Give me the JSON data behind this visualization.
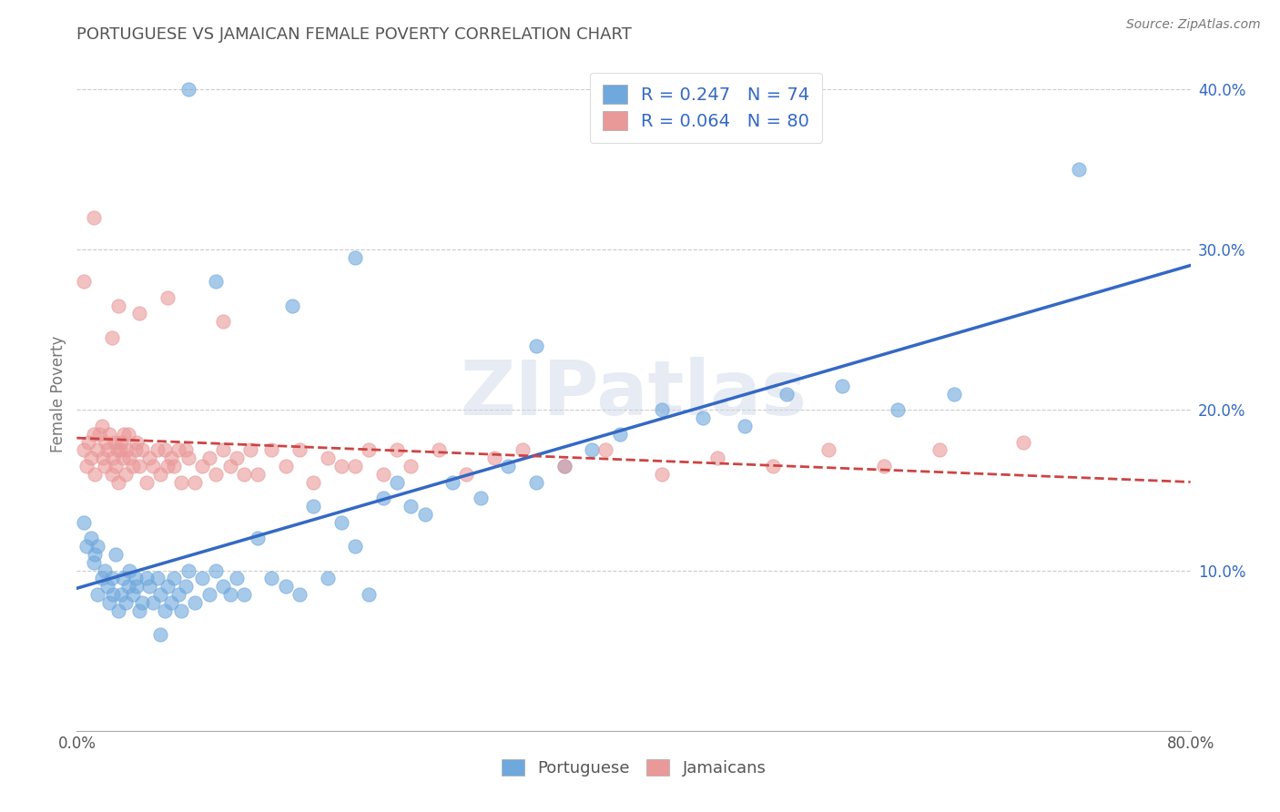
{
  "title": "PORTUGUESE VS JAMAICAN FEMALE POVERTY CORRELATION CHART",
  "source": "Source: ZipAtlas.com",
  "ylabel": "Female Poverty",
  "xlim": [
    0.0,
    0.8
  ],
  "ylim": [
    0.0,
    0.42
  ],
  "xticks": [
    0.0,
    0.1,
    0.2,
    0.3,
    0.4,
    0.5,
    0.6,
    0.7,
    0.8
  ],
  "xticklabels": [
    "0.0%",
    "",
    "",
    "",
    "",
    "",
    "",
    "",
    "80.0%"
  ],
  "yticks_right": [
    0.1,
    0.2,
    0.3,
    0.4
  ],
  "ytick_labels_right": [
    "10.0%",
    "20.0%",
    "30.0%",
    "40.0%"
  ],
  "portuguese_R": 0.247,
  "portuguese_N": 74,
  "jamaican_R": 0.064,
  "jamaican_N": 80,
  "blue_color": "#6fa8dc",
  "pink_color": "#ea9999",
  "blue_line_color": "#3469c4",
  "pink_line_color": "#cc4444",
  "legend_text_color": "#3469c4",
  "title_color": "#555555",
  "watermark": "ZIPatlas",
  "portuguese_x": [
    0.005,
    0.007,
    0.01,
    0.012,
    0.013,
    0.015,
    0.015,
    0.018,
    0.02,
    0.022,
    0.023,
    0.025,
    0.026,
    0.028,
    0.03,
    0.032,
    0.033,
    0.035,
    0.037,
    0.038,
    0.04,
    0.042,
    0.043,
    0.045,
    0.047,
    0.05,
    0.052,
    0.055,
    0.058,
    0.06,
    0.063,
    0.065,
    0.068,
    0.07,
    0.073,
    0.075,
    0.078,
    0.08,
    0.085,
    0.09,
    0.095,
    0.1,
    0.105,
    0.11,
    0.115,
    0.12,
    0.13,
    0.14,
    0.15,
    0.16,
    0.17,
    0.18,
    0.19,
    0.2,
    0.21,
    0.22,
    0.23,
    0.24,
    0.25,
    0.27,
    0.29,
    0.31,
    0.33,
    0.35,
    0.37,
    0.39,
    0.42,
    0.45,
    0.48,
    0.51,
    0.55,
    0.59,
    0.63,
    0.72
  ],
  "portuguese_y": [
    0.13,
    0.115,
    0.12,
    0.105,
    0.11,
    0.085,
    0.115,
    0.095,
    0.1,
    0.09,
    0.08,
    0.095,
    0.085,
    0.11,
    0.075,
    0.085,
    0.095,
    0.08,
    0.09,
    0.1,
    0.085,
    0.095,
    0.09,
    0.075,
    0.08,
    0.095,
    0.09,
    0.08,
    0.095,
    0.085,
    0.075,
    0.09,
    0.08,
    0.095,
    0.085,
    0.075,
    0.09,
    0.1,
    0.08,
    0.095,
    0.085,
    0.1,
    0.09,
    0.085,
    0.095,
    0.085,
    0.12,
    0.095,
    0.09,
    0.085,
    0.14,
    0.095,
    0.13,
    0.115,
    0.085,
    0.145,
    0.155,
    0.14,
    0.135,
    0.155,
    0.145,
    0.165,
    0.155,
    0.165,
    0.175,
    0.185,
    0.2,
    0.195,
    0.19,
    0.21,
    0.215,
    0.2,
    0.21,
    0.35
  ],
  "portuguese_y_outliers": [
    0.4,
    0.28,
    0.265,
    0.295,
    0.24,
    0.06
  ],
  "portuguese_x_outliers": [
    0.08,
    0.1,
    0.155,
    0.2,
    0.33,
    0.06
  ],
  "jamaican_x": [
    0.005,
    0.007,
    0.008,
    0.01,
    0.012,
    0.013,
    0.015,
    0.016,
    0.018,
    0.019,
    0.02,
    0.021,
    0.022,
    0.023,
    0.025,
    0.026,
    0.027,
    0.028,
    0.029,
    0.03,
    0.031,
    0.032,
    0.033,
    0.034,
    0.035,
    0.036,
    0.037,
    0.038,
    0.04,
    0.042,
    0.043,
    0.045,
    0.047,
    0.05,
    0.052,
    0.055,
    0.058,
    0.06,
    0.063,
    0.065,
    0.068,
    0.07,
    0.073,
    0.075,
    0.078,
    0.08,
    0.085,
    0.09,
    0.095,
    0.1,
    0.105,
    0.11,
    0.115,
    0.12,
    0.125,
    0.13,
    0.14,
    0.15,
    0.16,
    0.17,
    0.18,
    0.19,
    0.2,
    0.21,
    0.22,
    0.23,
    0.24,
    0.26,
    0.28,
    0.3,
    0.32,
    0.35,
    0.38,
    0.42,
    0.46,
    0.5,
    0.54,
    0.58,
    0.62,
    0.68
  ],
  "jamaican_y": [
    0.175,
    0.165,
    0.18,
    0.17,
    0.185,
    0.16,
    0.175,
    0.185,
    0.19,
    0.17,
    0.165,
    0.18,
    0.175,
    0.185,
    0.16,
    0.17,
    0.18,
    0.165,
    0.175,
    0.155,
    0.175,
    0.18,
    0.17,
    0.185,
    0.16,
    0.175,
    0.185,
    0.17,
    0.165,
    0.175,
    0.18,
    0.165,
    0.175,
    0.155,
    0.17,
    0.165,
    0.175,
    0.16,
    0.175,
    0.165,
    0.17,
    0.165,
    0.175,
    0.155,
    0.175,
    0.17,
    0.155,
    0.165,
    0.17,
    0.16,
    0.175,
    0.165,
    0.17,
    0.16,
    0.175,
    0.16,
    0.175,
    0.165,
    0.175,
    0.155,
    0.17,
    0.165,
    0.165,
    0.175,
    0.16,
    0.175,
    0.165,
    0.175,
    0.16,
    0.17,
    0.175,
    0.165,
    0.175,
    0.16,
    0.17,
    0.165,
    0.175,
    0.165,
    0.175,
    0.18
  ],
  "jamaican_y_outliers": [
    0.28,
    0.32,
    0.245,
    0.265,
    0.26,
    0.27,
    0.255
  ],
  "jamaican_x_outliers": [
    0.005,
    0.012,
    0.025,
    0.03,
    0.045,
    0.065,
    0.105
  ]
}
